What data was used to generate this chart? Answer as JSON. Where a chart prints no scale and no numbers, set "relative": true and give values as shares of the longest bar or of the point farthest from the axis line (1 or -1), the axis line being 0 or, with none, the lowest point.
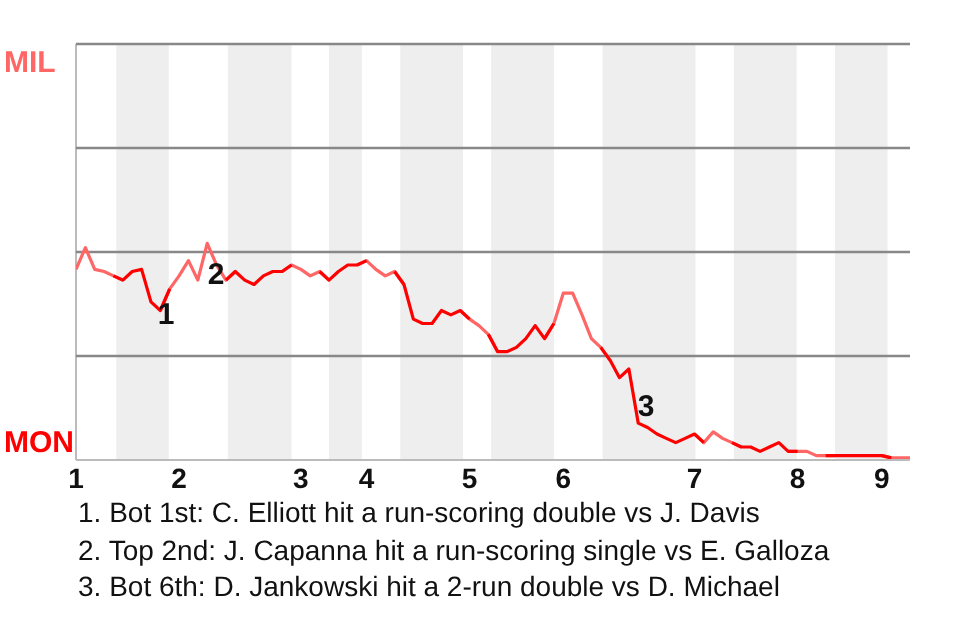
{
  "chart_data": {
    "type": "line",
    "relative": true,
    "categories": [
      "1",
      null,
      null,
      null,
      null,
      null,
      null,
      null,
      null,
      null,
      null,
      "2",
      null,
      null,
      null,
      null,
      null,
      null,
      null,
      null,
      null,
      null,
      null,
      null,
      "3",
      null,
      null,
      null,
      null,
      null,
      null,
      "4",
      null,
      null,
      null,
      null,
      null,
      null,
      null,
      null,
      null,
      null,
      "5",
      null,
      null,
      null,
      null,
      null,
      null,
      null,
      null,
      null,
      "6",
      null,
      null,
      null,
      null,
      null,
      null,
      null,
      null,
      null,
      null,
      null,
      null,
      null,
      "7",
      null,
      null,
      null,
      null,
      null,
      null,
      null,
      null,
      null,
      null,
      "8",
      null,
      null,
      null,
      null,
      null,
      null,
      null,
      null,
      "9",
      null,
      null,
      null
    ],
    "series": [
      {
        "color": "#ff6666",
        "values": [
          0.88,
          0.98,
          0.88,
          0.87,
          0.85,
          0.83,
          null,
          null,
          null,
          0.69,
          0.79,
          0.85,
          0.92,
          0.83,
          1,
          0.9,
          0.83,
          0.87,
          null,
          null,
          null,
          null,
          0.87,
          0.9,
          0.88,
          0.85,
          0.87,
          0.83,
          null,
          null,
          0.9,
          0.92,
          0.88,
          0.85,
          0.87,
          0.81,
          null,
          null,
          null,
          null,
          null,
          0.69,
          0.65,
          0.62,
          0.58,
          0.5,
          null,
          null,
          null,
          null,
          0.56,
          0.63,
          0.77,
          0.77,
          0.67,
          0.56,
          0.52,
          0.46,
          null,
          null,
          null,
          null,
          null,
          null,
          null,
          null,
          0.12,
          0.08,
          0.13,
          0.1,
          0.08,
          0.06,
          null,
          null,
          null,
          null,
          0.04,
          0.04,
          0.04,
          0.02,
          0.02,
          0.02,
          null,
          null,
          null,
          null,
          0.02,
          0.01,
          0.01,
          0.01
        ]
      },
      {
        "color": "#ff0000",
        "values": [
          null,
          null,
          null,
          null,
          0.85,
          0.83,
          0.87,
          0.88,
          0.73,
          0.69,
          0.79,
          null,
          null,
          null,
          null,
          null,
          0.83,
          0.87,
          0.83,
          0.81,
          0.85,
          0.87,
          0.87,
          0.9,
          null,
          null,
          0.87,
          0.83,
          0.87,
          0.9,
          0.9,
          0.92,
          null,
          null,
          0.87,
          0.81,
          0.65,
          0.63,
          0.63,
          0.69,
          0.67,
          0.69,
          0.65,
          null,
          0.58,
          0.5,
          0.5,
          0.52,
          0.56,
          0.62,
          0.56,
          0.63,
          null,
          null,
          null,
          null,
          0.52,
          0.46,
          0.38,
          0.42,
          0.17,
          0.15,
          0.12,
          0.1,
          0.08,
          0.1,
          0.12,
          0.08,
          null,
          null,
          0.08,
          0.06,
          0.06,
          0.04,
          0.06,
          0.08,
          0.04,
          0.04,
          null,
          null,
          0.02,
          0.02,
          0.02,
          0.02,
          0.02,
          0.02,
          0.02,
          0.01,
          null,
          null
        ]
      }
    ],
    "ref_lines": [
      {
        "axis": "y",
        "value": 0.48,
        "color": "#888888"
      },
      {
        "axis": "y",
        "value": 0.96,
        "color": "#888888"
      },
      {
        "axis": "y",
        "value": 1.44,
        "color": "#888888"
      },
      {
        "axis": "y",
        "value": 1.92,
        "color": "#888888"
      }
    ],
    "annotations": [
      "MIL",
      "MON",
      "1",
      "2",
      "3",
      "1. Bot 1st: C. Elliott hit a run-scoring double vs J. Davis",
      "2. Top 2nd: J. Capanna hit a run-scoring single vs E. Galloza",
      "3. Bot 6th: D. Jankowski hit a 2-run double vs D. Michael"
    ],
    "marker": "none",
    "line_style": "solid"
  }
}
